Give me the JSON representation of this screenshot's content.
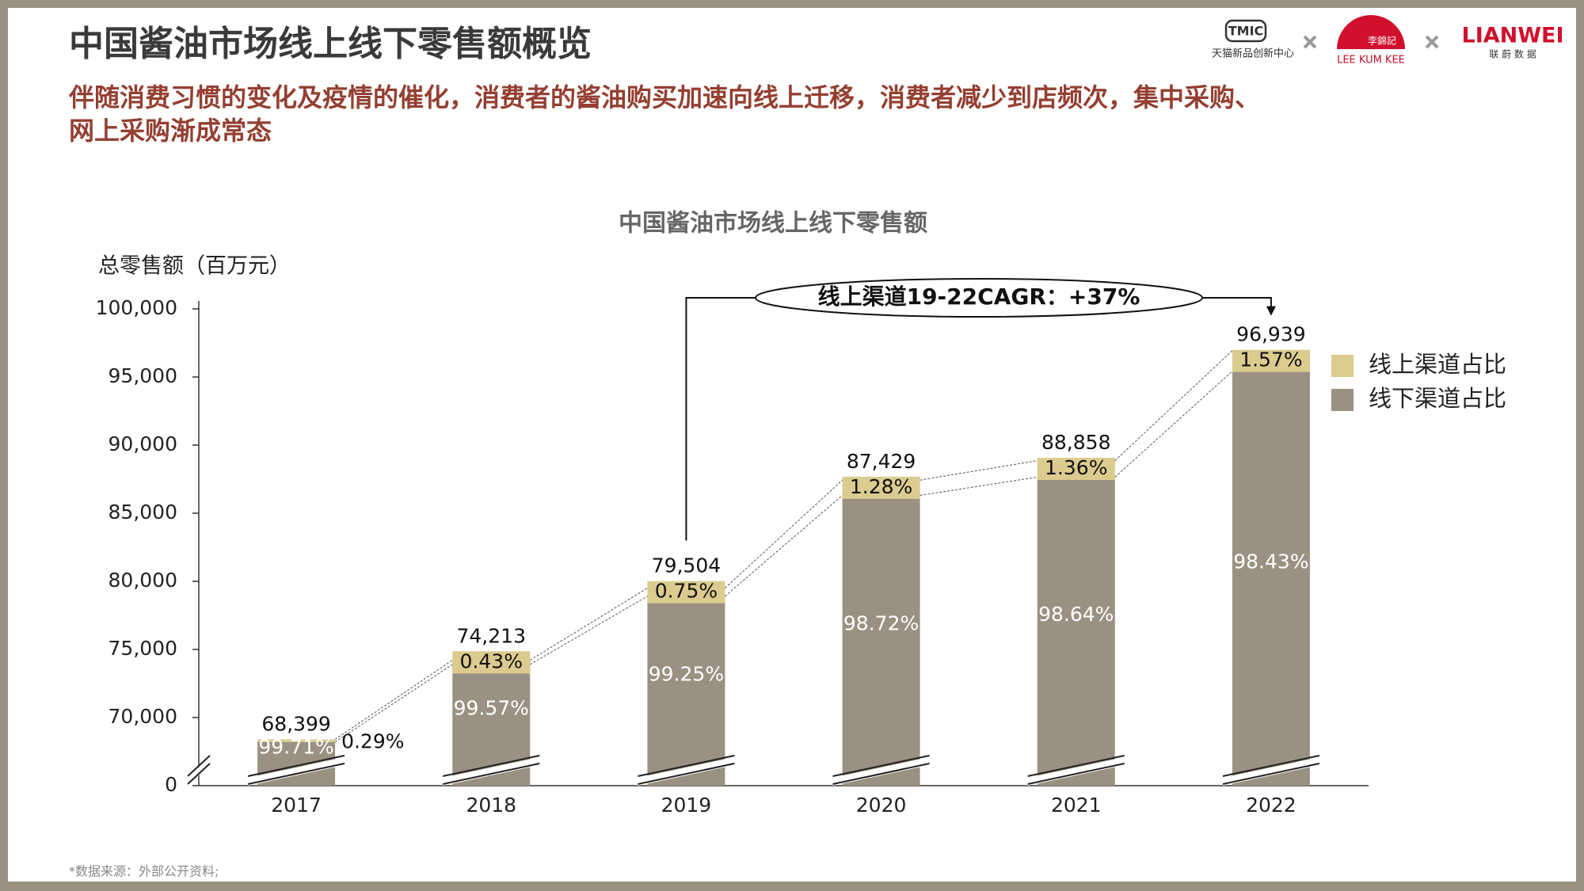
{
  "header": {
    "title": "中国酱油市场线上线下零售额概览",
    "subtitle_lines": [
      "伴随消费习惯的变化及疫情的催化，消费者的酱油购买加速向线上迁移，消费者减少到店频次，集中采购、",
      "网上采购渐成常态"
    ],
    "logos": [
      {
        "name": "TMIC",
        "caption": "天猫新品创新中心"
      },
      {
        "name": "李錦記",
        "caption": "LEE KUM KEE"
      },
      {
        "name": "LIANWEI",
        "caption": "联 蔚 数 据"
      }
    ]
  },
  "chart_data": {
    "type": "stacked_bar",
    "title": "中国酱油市场线上线下零售额",
    "y_label": "总零售额（百万元）",
    "categories": [
      "2017",
      "2018",
      "2019",
      "2020",
      "2021",
      "2022"
    ],
    "total": {
      "values": [
        68399,
        74213,
        79504,
        87429,
        88858,
        96939
      ],
      "value_labels": [
        "68,399",
        "74,213",
        "79,504",
        "87,429",
        "88,858",
        "96,939"
      ]
    },
    "series": [
      {
        "name": "线上渠道占比",
        "color": "#dccb8f",
        "values": [
          0.29,
          0.43,
          0.75,
          1.28,
          1.36,
          1.57
        ],
        "value_labels": [
          "0.29%",
          "0.43%",
          "0.75%",
          "1.28%",
          "1.36%",
          "1.57%"
        ]
      },
      {
        "name": "线下渠道占比",
        "color": "#9b9182",
        "values": [
          99.71,
          99.57,
          99.25,
          98.72,
          98.64,
          98.43
        ],
        "value_labels": [
          "99.71%",
          "99.57%",
          "99.25%",
          "98.72%",
          "98.64%",
          "98.43%"
        ]
      }
    ],
    "ylim": [
      0,
      100000
    ],
    "axis_break": [
      0,
      65000
    ],
    "yticks": [
      0,
      {
        "value": 70000,
        "label": "70,000"
      },
      {
        "value": 75000,
        "label": "75,000"
      },
      {
        "value": 80000,
        "label": "80,000"
      },
      {
        "value": 85000,
        "label": "85,000"
      },
      {
        "value": 90000,
        "label": "90,000"
      },
      {
        "value": 95000,
        "label": "95,000"
      },
      {
        "value": 100000,
        "label": "100,000"
      }
    ],
    "annotation": "线上渠道19-22CAGR：+37%"
  },
  "source": "*数据来源：外部公开资料;"
}
